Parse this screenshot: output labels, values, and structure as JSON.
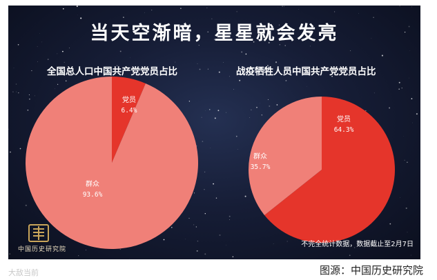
{
  "title": "当天空渐暗，星星就会发亮",
  "chart_data": [
    {
      "type": "pie",
      "title": "全国总人口中国共产党党员占比",
      "slices": [
        {
          "label": "党员",
          "value": 6.4,
          "value_label": "6.4%",
          "color": "#e5352b"
        },
        {
          "label": "群众",
          "value": 93.6,
          "value_label": "93.6%",
          "color": "#f08078"
        }
      ]
    },
    {
      "type": "pie",
      "title": "战疫牺牲人员中国共产党党员占比",
      "slices": [
        {
          "label": "党员",
          "value": 64.3,
          "value_label": "64.3%",
          "color": "#e5352b"
        },
        {
          "label": "群众",
          "value": 35.7,
          "value_label": "35.7%",
          "color": "#f08078"
        }
      ]
    }
  ],
  "note": "不完全统计数据，数据截止至2月7日",
  "organization": "中国历史研究院",
  "caption": "图源：中国历史研究院",
  "watermark": "大敌当前"
}
